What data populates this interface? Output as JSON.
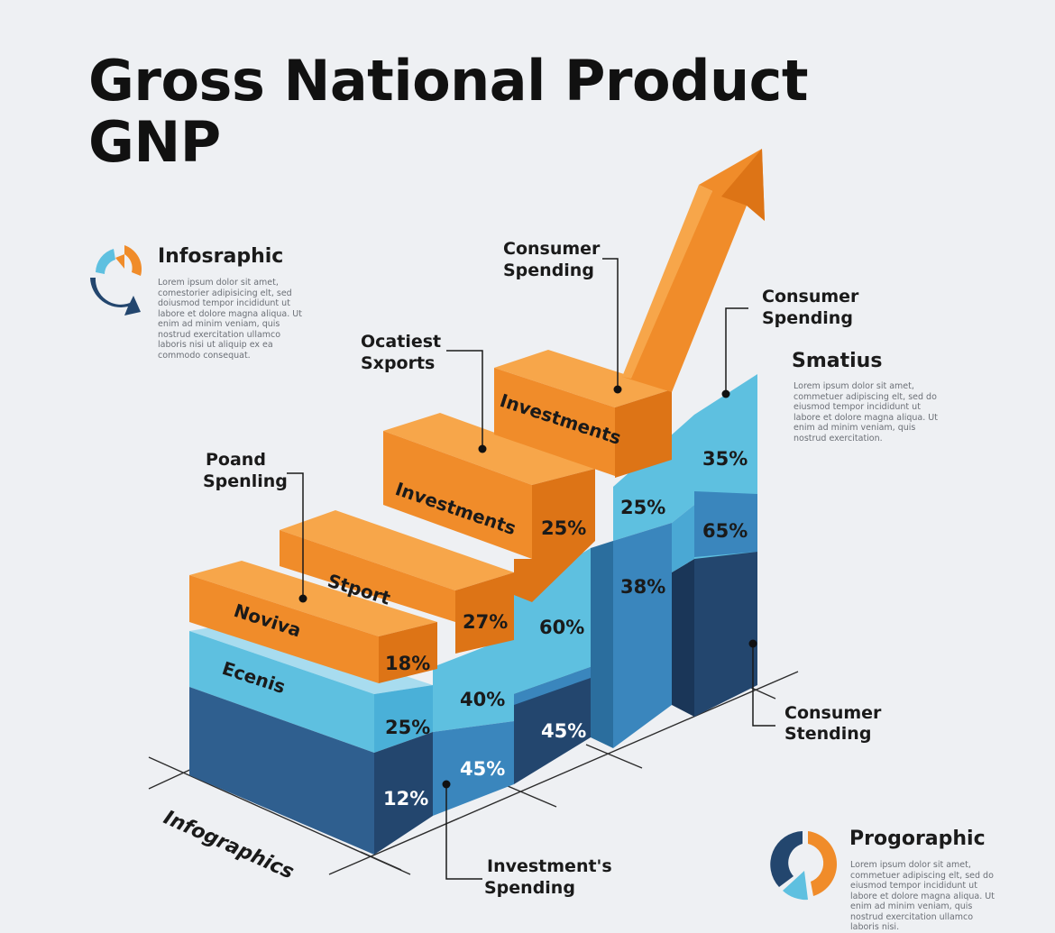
{
  "title": {
    "line1": "Gross National Product",
    "line2": "GNP"
  },
  "side_left": {
    "heading": "Infosraphic",
    "body": "Lorem ipsum dolor sit amet, comestorier adipisicing elt, sed doiusmod tempor incididunt ut labore et dolore magna aliqua. Ut enim ad minim veniam, quis nostrud exercitation ullamco laboris nisi ut aliquip ex ea commodo consequat."
  },
  "side_right": {
    "heading": "Smatius",
    "body": "Lorem ipsum dolor sit amet, commetuer adipiscing elt, sed do eiusmod tempor incididunt ut labore et dolore magna aliqua. Ut enim ad minim veniam, quis nostrud exercitation."
  },
  "side_bottom": {
    "heading": "Progoraphic",
    "body": "Lorem ipsum dolor sit amet, commetuer adipiscing elt, sed do eiusmod tempor incididunt ut labore et dolore magna aliqua. Ut enim ad minim veniam, quis nostrud exercitation ullamco laboris nisi."
  },
  "chart_data": {
    "type": "bar",
    "axis_label": "Infographics",
    "colors": {
      "orange": "#f08c2a",
      "light_blue": "#5ec0e0",
      "mid_blue": "#3a86bd",
      "dark_blue": "#23466e"
    },
    "orange_labels": [
      "Noviva",
      "Stport",
      "Investments",
      "Investments"
    ],
    "layer_labels": [
      "Ecenis"
    ],
    "values": {
      "col1": {
        "orange": "18%",
        "light": "25%",
        "dark": "12%"
      },
      "col2": {
        "orange": "27%",
        "light": "40%",
        "dark": "45%"
      },
      "col3": {
        "orange": "25%",
        "light": "60%",
        "dark": "45%"
      },
      "col4": {
        "light": "25%",
        "mid": "38%"
      },
      "col5": {
        "light": "35%",
        "mid": "65%"
      }
    },
    "callouts": [
      {
        "id": "poand",
        "text": [
          "Poand",
          "Spenling"
        ]
      },
      {
        "id": "ocatiest",
        "text": [
          "Ocatiest",
          "Sxports"
        ]
      },
      {
        "id": "consumer-top",
        "text": [
          "Consumer",
          "Spending"
        ]
      },
      {
        "id": "consumer-right",
        "text": [
          "Consumer",
          "Spending"
        ]
      },
      {
        "id": "consumer-stending",
        "text": [
          "Consumer",
          "Stending"
        ]
      },
      {
        "id": "investments-spending",
        "text": [
          "Investment's",
          "Spending"
        ]
      }
    ]
  }
}
